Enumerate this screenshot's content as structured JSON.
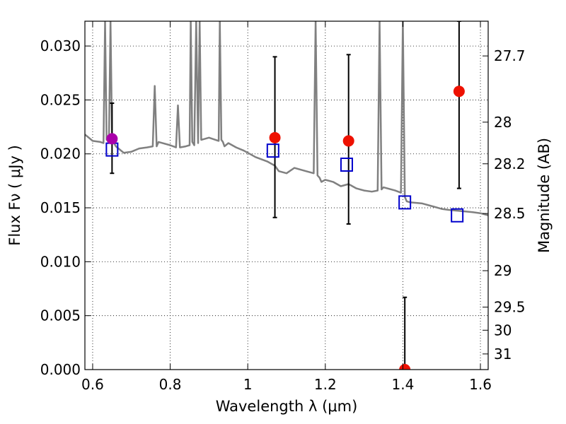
{
  "chart_data": {
    "type": "scatter",
    "xlabel": "Wavelength  λ (μm)",
    "ylabel": "Flux  Fν  ( μJy )",
    "y2label": "Magnitude (AB)",
    "xlim": [
      0.58,
      1.62
    ],
    "ylim": [
      0.0,
      0.0323
    ],
    "x_ticks": [
      0.6,
      0.8,
      1.0,
      1.2,
      1.4,
      1.6
    ],
    "x_tick_labels": [
      "0.6",
      "0.8",
      "1",
      "1.2",
      "1.4",
      "1.6"
    ],
    "y_ticks": [
      0.0,
      0.005,
      0.01,
      0.015,
      0.02,
      0.025,
      0.03
    ],
    "y_tick_labels": [
      "0.000",
      "0.005",
      "0.010",
      "0.015",
      "0.020",
      "0.025",
      "0.030"
    ],
    "y2_ticks": [
      {
        "flux": 0.02908,
        "label": "27.7"
      },
      {
        "flux": 0.02294,
        "label": "28"
      },
      {
        "flux": 0.01908,
        "label": "28.2"
      },
      {
        "flux": 0.01447,
        "label": "28.5"
      },
      {
        "flux": 0.00917,
        "label": "29"
      },
      {
        "flux": 0.00579,
        "label": "29.5"
      },
      {
        "flux": 0.00365,
        "label": "30"
      },
      {
        "flux": 0.00145,
        "label": "31"
      }
    ],
    "grid": true,
    "series": [
      {
        "color": "#808080",
        "kind": "line",
        "x": [
          0.58,
          0.6,
          0.62,
          0.628,
          0.632,
          0.636,
          0.642,
          0.646,
          0.65,
          0.66,
          0.68,
          0.7,
          0.72,
          0.74,
          0.755,
          0.76,
          0.765,
          0.77,
          0.8,
          0.815,
          0.82,
          0.825,
          0.84,
          0.85,
          0.853,
          0.857,
          0.862,
          0.867,
          0.872,
          0.876,
          0.88,
          0.9,
          0.925,
          0.928,
          0.932,
          0.936,
          0.94,
          0.95,
          0.97,
          0.99,
          1.0,
          1.02,
          1.05,
          1.07,
          1.08,
          1.1,
          1.12,
          1.15,
          1.17,
          1.175,
          1.18,
          1.185,
          1.19,
          1.2,
          1.22,
          1.24,
          1.26,
          1.28,
          1.3,
          1.32,
          1.335,
          1.34,
          1.345,
          1.35,
          1.38,
          1.395,
          1.4,
          1.405,
          1.41,
          1.42,
          1.45,
          1.48,
          1.5,
          1.52,
          1.55,
          1.58,
          1.6,
          1.62
        ],
        "y": [
          0.0218,
          0.0212,
          0.0211,
          0.021,
          0.0323,
          0.0213,
          0.0212,
          0.0323,
          0.0213,
          0.0207,
          0.0201,
          0.0202,
          0.0205,
          0.0206,
          0.0207,
          0.0263,
          0.0207,
          0.0211,
          0.0208,
          0.0206,
          0.0245,
          0.0206,
          0.0207,
          0.0208,
          0.0323,
          0.0211,
          0.0208,
          0.0323,
          0.021,
          0.0323,
          0.0213,
          0.0215,
          0.0212,
          0.0323,
          0.0213,
          0.0211,
          0.0207,
          0.021,
          0.0206,
          0.0203,
          0.0201,
          0.0197,
          0.0193,
          0.0189,
          0.0184,
          0.0182,
          0.0187,
          0.0184,
          0.0182,
          0.0323,
          0.018,
          0.0178,
          0.0174,
          0.0176,
          0.0174,
          0.017,
          0.0172,
          0.0168,
          0.0166,
          0.0165,
          0.0166,
          0.0323,
          0.0167,
          0.0169,
          0.0166,
          0.0164,
          0.0323,
          0.016,
          0.0156,
          0.0155,
          0.0154,
          0.0151,
          0.0149,
          0.0148,
          0.0147,
          0.0146,
          0.0145,
          0.0143
        ]
      },
      {
        "color": "#0000cc",
        "kind": "open-square",
        "x": [
          0.65,
          1.065,
          1.255,
          1.405,
          1.54
        ],
        "y": [
          0.0204,
          0.0203,
          0.019,
          0.0155,
          0.0143
        ]
      },
      {
        "color": "#ee1100",
        "kind": "filled-circle-errorbar",
        "x": [
          0.65,
          1.07,
          1.26,
          1.405,
          1.545
        ],
        "y": [
          0.0214,
          0.0215,
          0.0212,
          0.0,
          0.0258
        ],
        "yerr_low": [
          0.0182,
          0.0141,
          0.0135,
          0.0,
          0.0168
        ],
        "yerr_high": [
          0.0247,
          0.029,
          0.0292,
          0.0067,
          0.0323
        ],
        "point_colors": [
          "#aa00aa",
          "#ee1100",
          "#ee1100",
          "#ee1100",
          "#ee1100"
        ]
      }
    ]
  }
}
